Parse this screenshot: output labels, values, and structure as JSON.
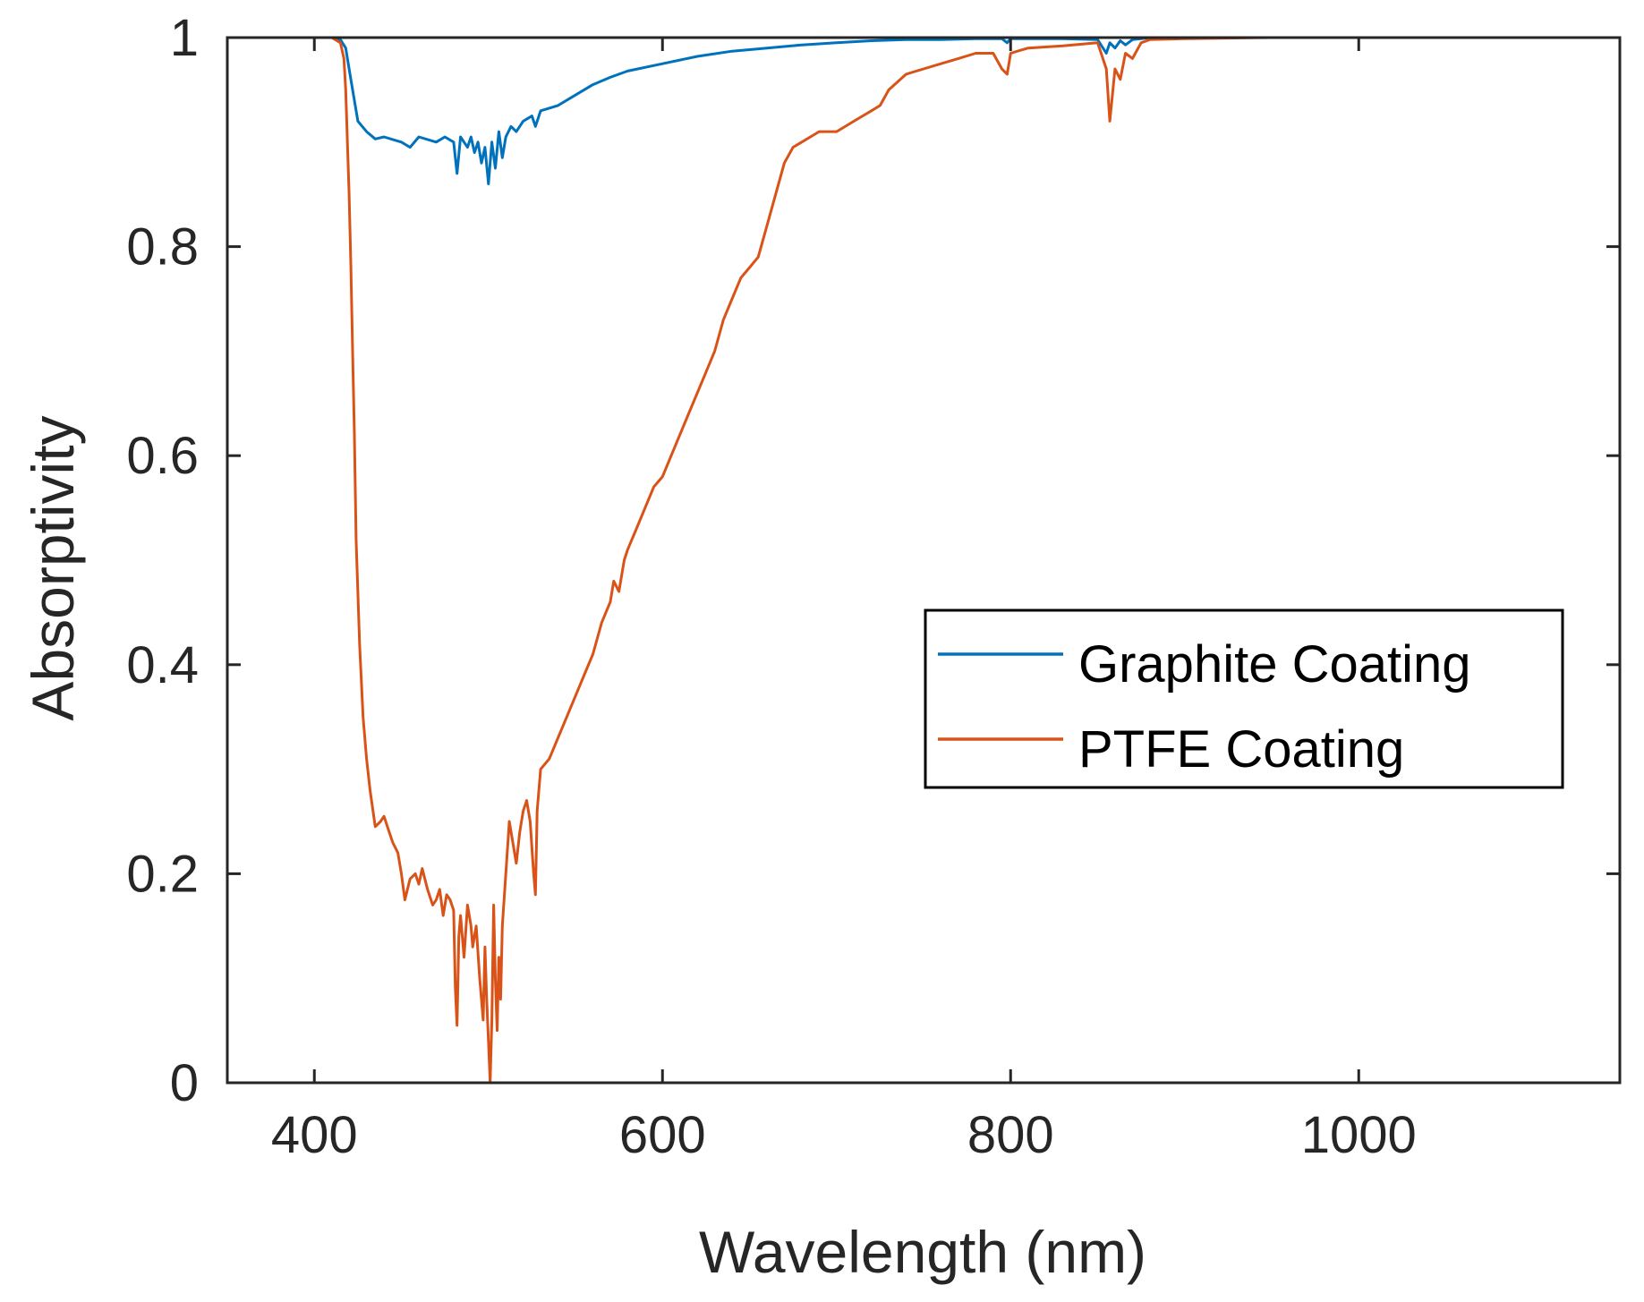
{
  "chart_data": {
    "type": "line",
    "title": "",
    "xlabel": "Wavelength (nm)",
    "ylabel": "Absorptivity",
    "xlim": [
      350,
      1150
    ],
    "ylim": [
      0,
      1
    ],
    "xticks": [
      400,
      600,
      800,
      1000
    ],
    "xtick_labels": [
      "400",
      "600",
      "800",
      "1000"
    ],
    "yticks": [
      0,
      0.2,
      0.4,
      0.6,
      0.8,
      1
    ],
    "ytick_labels": [
      "0",
      "0.2",
      "0.4",
      "0.6",
      "0.8",
      "1"
    ],
    "grid": false,
    "legend_position": "center-right",
    "series": [
      {
        "name": "Graphite Coating",
        "color": "#0072BD",
        "x": [
          385,
          410,
          415,
          418,
          420,
          422,
          425,
          430,
          435,
          440,
          450,
          455,
          460,
          470,
          475,
          480,
          482,
          484,
          486,
          488,
          490,
          492,
          494,
          496,
          498,
          500,
          502,
          504,
          506,
          508,
          510,
          513,
          516,
          520,
          525,
          527,
          530,
          540,
          550,
          560,
          570,
          580,
          600,
          620,
          640,
          660,
          680,
          700,
          720,
          740,
          760,
          780,
          795,
          798,
          800,
          810,
          830,
          850,
          855,
          857,
          860,
          863,
          866,
          870,
          875,
          880,
          900,
          950,
          1000,
          1100,
          1150
        ],
        "y": [
          1.0,
          1.0,
          0.998,
          0.99,
          0.97,
          0.95,
          0.92,
          0.91,
          0.903,
          0.905,
          0.9,
          0.895,
          0.905,
          0.9,
          0.905,
          0.9,
          0.87,
          0.905,
          0.9,
          0.895,
          0.905,
          0.89,
          0.9,
          0.88,
          0.895,
          0.86,
          0.9,
          0.875,
          0.91,
          0.885,
          0.905,
          0.915,
          0.91,
          0.92,
          0.925,
          0.915,
          0.93,
          0.935,
          0.945,
          0.955,
          0.962,
          0.968,
          0.975,
          0.982,
          0.987,
          0.99,
          0.993,
          0.995,
          0.997,
          0.998,
          0.998,
          0.999,
          0.999,
          0.995,
          0.999,
          0.999,
          0.999,
          0.998,
          0.985,
          0.995,
          0.99,
          0.997,
          0.993,
          0.998,
          0.999,
          1.0,
          1.0,
          1.0,
          1.0,
          1.0,
          1.0
        ]
      },
      {
        "name": "PTFE Coating",
        "color": "#D95319",
        "x": [
          385,
          410,
          415,
          417,
          418,
          419,
          420,
          421,
          422,
          423,
          424,
          426,
          428,
          430,
          432,
          435,
          438,
          440,
          442,
          445,
          448,
          450,
          452,
          455,
          458,
          460,
          462,
          465,
          468,
          470,
          472,
          474,
          476,
          478,
          480,
          481,
          482,
          483,
          484,
          486,
          488,
          490,
          491,
          493,
          495,
          497,
          498,
          499,
          500,
          501,
          502,
          503,
          504,
          505,
          506,
          507,
          508,
          510,
          512,
          514,
          516,
          518,
          520,
          522,
          524,
          526,
          527,
          528,
          530,
          535,
          540,
          545,
          550,
          555,
          560,
          565,
          570,
          572,
          575,
          578,
          580,
          585,
          590,
          595,
          600,
          605,
          610,
          615,
          620,
          625,
          630,
          635,
          640,
          645,
          650,
          655,
          660,
          665,
          670,
          675,
          680,
          690,
          700,
          710,
          720,
          725,
          730,
          740,
          750,
          760,
          770,
          780,
          790,
          795,
          798,
          800,
          810,
          830,
          850,
          855,
          857,
          860,
          863,
          866,
          870,
          875,
          880,
          900,
          950,
          1000,
          1100,
          1150
        ],
        "y": [
          1.0,
          1.0,
          0.995,
          0.98,
          0.95,
          0.9,
          0.85,
          0.78,
          0.7,
          0.62,
          0.52,
          0.42,
          0.35,
          0.31,
          0.28,
          0.245,
          0.25,
          0.255,
          0.245,
          0.23,
          0.22,
          0.2,
          0.175,
          0.195,
          0.2,
          0.19,
          0.205,
          0.185,
          0.17,
          0.175,
          0.185,
          0.16,
          0.18,
          0.175,
          0.165,
          0.09,
          0.055,
          0.14,
          0.16,
          0.12,
          0.17,
          0.15,
          0.13,
          0.15,
          0.1,
          0.06,
          0.13,
          0.08,
          0.04,
          0.0,
          0.06,
          0.17,
          0.1,
          0.05,
          0.12,
          0.08,
          0.15,
          0.2,
          0.25,
          0.23,
          0.21,
          0.24,
          0.26,
          0.27,
          0.25,
          0.2,
          0.18,
          0.26,
          0.3,
          0.31,
          0.33,
          0.35,
          0.37,
          0.39,
          0.41,
          0.44,
          0.46,
          0.48,
          0.47,
          0.5,
          0.51,
          0.53,
          0.55,
          0.57,
          0.58,
          0.6,
          0.62,
          0.64,
          0.66,
          0.68,
          0.7,
          0.73,
          0.75,
          0.77,
          0.78,
          0.79,
          0.82,
          0.85,
          0.88,
          0.895,
          0.9,
          0.91,
          0.91,
          0.92,
          0.93,
          0.935,
          0.95,
          0.965,
          0.97,
          0.975,
          0.98,
          0.985,
          0.985,
          0.97,
          0.965,
          0.985,
          0.99,
          0.992,
          0.995,
          0.97,
          0.92,
          0.97,
          0.96,
          0.985,
          0.98,
          0.995,
          0.998,
          0.999,
          1.0,
          1.0,
          1.0,
          1.0
        ]
      }
    ]
  }
}
